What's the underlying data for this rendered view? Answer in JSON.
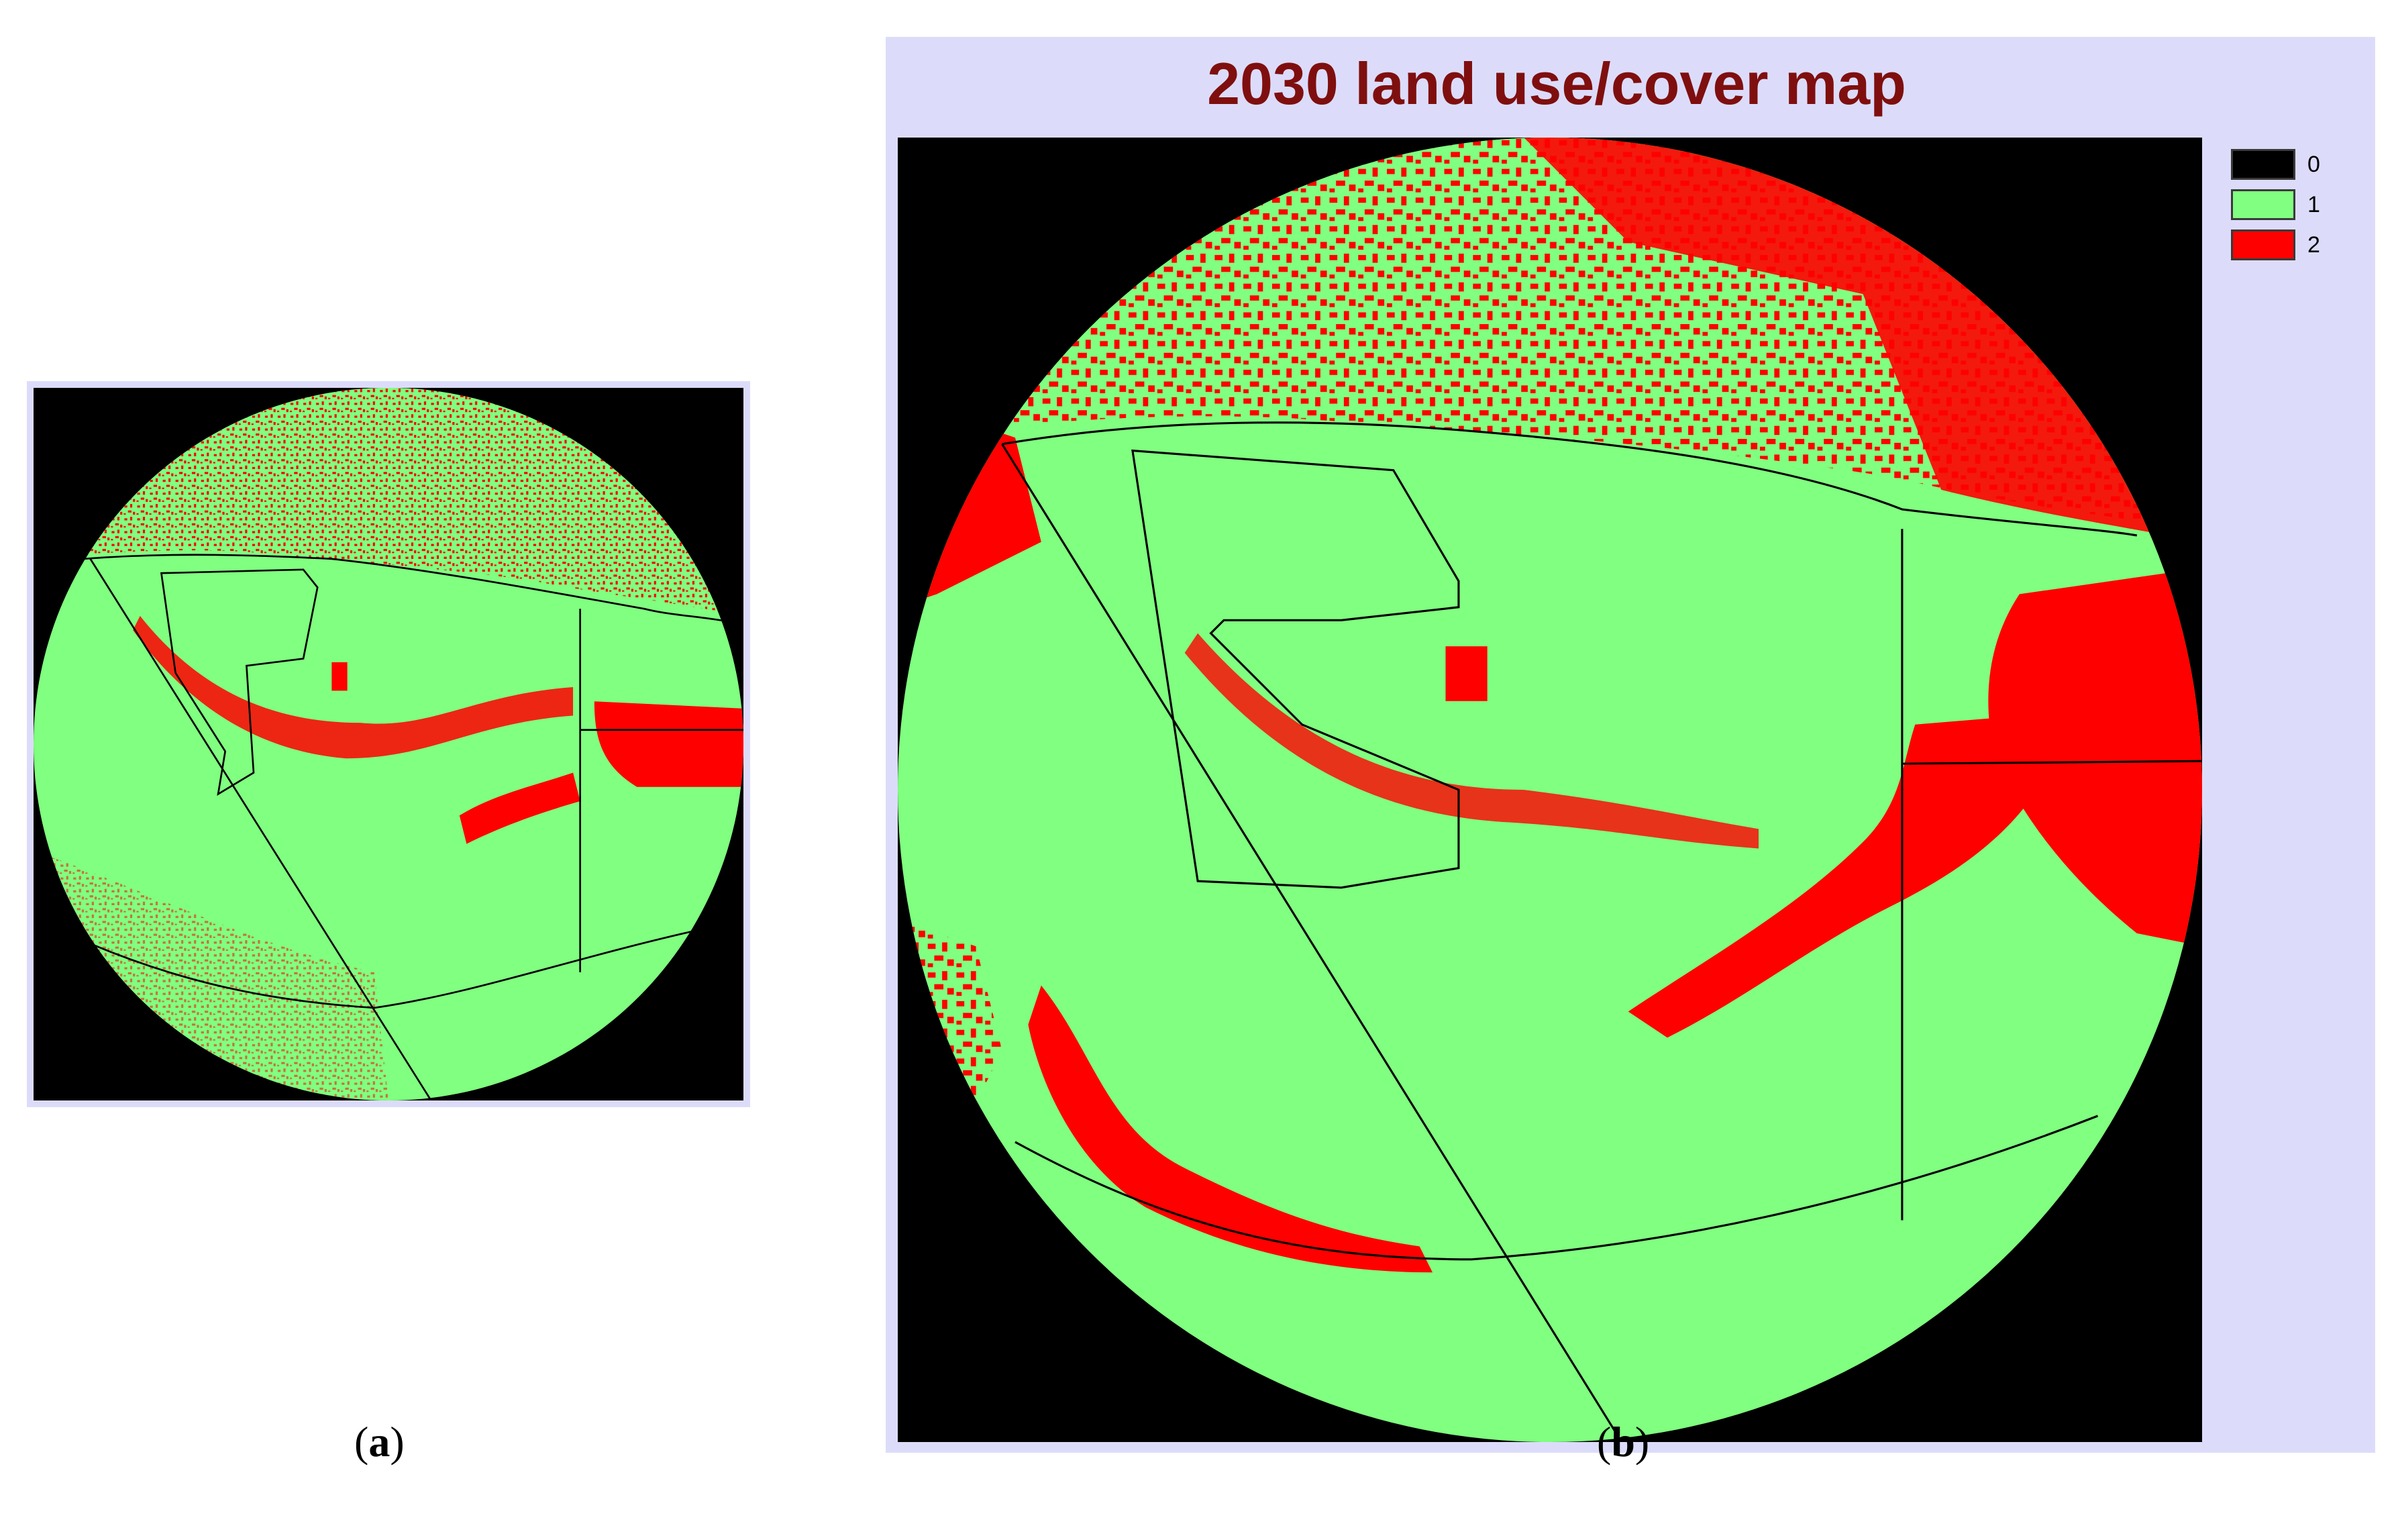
{
  "panels": {
    "a": {
      "caption_open": "(",
      "caption_letter": "a",
      "caption_close": ")"
    },
    "b": {
      "caption_open": "(",
      "caption_letter": "b",
      "caption_close": ")",
      "title": "2030 land use/cover map",
      "legend": [
        {
          "label": "0",
          "color": "#000000"
        },
        {
          "label": "1",
          "color": "#80ff80"
        },
        {
          "label": "2",
          "color": "#ff0000"
        }
      ]
    }
  },
  "colors": {
    "class0": "#000000",
    "class1": "#80ff80",
    "class2": "#ff0000",
    "frame": "#dcdcfa",
    "title": "#7f0f0f"
  }
}
